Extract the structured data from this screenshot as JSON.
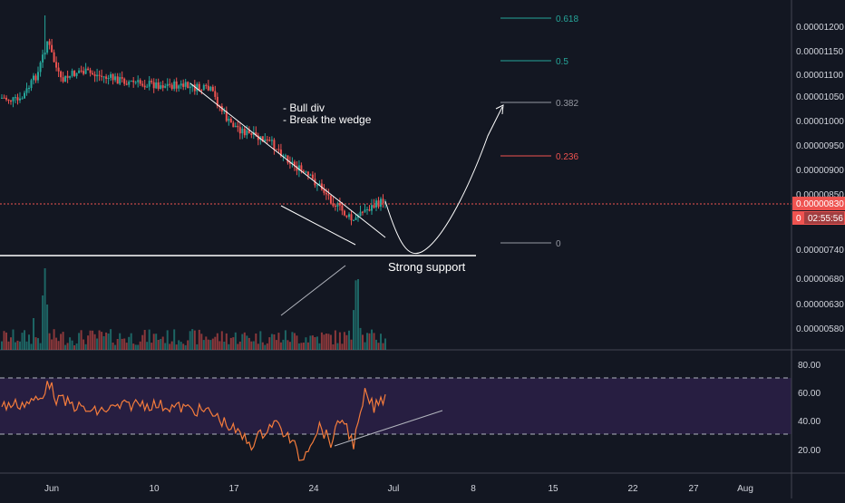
{
  "chart_data": {
    "type": "candlestick",
    "price_axis": {
      "ticks": [
        "0.00001200",
        "0.00001150",
        "0.00001100",
        "0.00001050",
        "0.00001000",
        "0.00000950",
        "0.00000900",
        "0.00000850",
        "0.00000740",
        "0.00000680",
        "0.00000630",
        "0.00000580"
      ],
      "last_price_label": "0.00000830",
      "countdown_label": "02:55:56",
      "countdown_prefix": "0"
    },
    "time_axis": {
      "ticks": [
        "Jun",
        "10",
        "17",
        "24",
        "Jul",
        "8",
        "15",
        "22",
        "27",
        "Aug"
      ]
    },
    "fib_levels": [
      {
        "label": "0.618",
        "color": "#26a69a"
      },
      {
        "label": "0.5",
        "color": "#26a69a"
      },
      {
        "label": "0.382",
        "color": "#9598a1"
      },
      {
        "label": "0.236",
        "color": "#ef5350"
      },
      {
        "label": "0",
        "color": "#9598a1"
      }
    ],
    "annotations": {
      "note_line1": "- Bull div",
      "note_line2": "- Break the wedge",
      "support": "Strong support"
    },
    "rsi": {
      "ticks": [
        "80.00",
        "60.00",
        "40.00",
        "20.00"
      ],
      "upper_band": 70,
      "lower_band": 30
    },
    "colors": {
      "background": "#131722",
      "up": "#26a69a",
      "down": "#ef5350",
      "rsi_line": "#f57c3c",
      "rsi_fill": "#2a1f45",
      "price_line": "#ef5350"
    }
  }
}
